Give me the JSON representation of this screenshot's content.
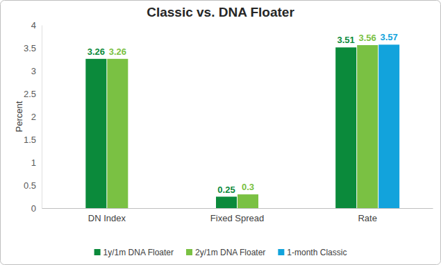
{
  "chart_data": {
    "type": "bar",
    "title": "Classic vs. DNA Floater",
    "ylabel": "Percent",
    "categories": [
      "DN Index",
      "Fixed Spread",
      "Rate"
    ],
    "series": [
      {
        "name": "1y/1m DNA Floater",
        "color": "#0b8a3b",
        "values": [
          3.26,
          0.25,
          3.51
        ]
      },
      {
        "name": "2y/1m DNA Floater",
        "color": "#7ac143",
        "values": [
          3.26,
          0.3,
          3.56
        ]
      },
      {
        "name": "1-month Classic",
        "color": "#12a3dc",
        "values": [
          null,
          null,
          3.57
        ]
      }
    ],
    "ylim": [
      0,
      4
    ],
    "yticks": [
      0,
      0.5,
      1,
      1.5,
      2,
      2.5,
      3,
      3.5,
      4
    ],
    "grid": false,
    "legend": "bottom",
    "data_labels": true
  }
}
